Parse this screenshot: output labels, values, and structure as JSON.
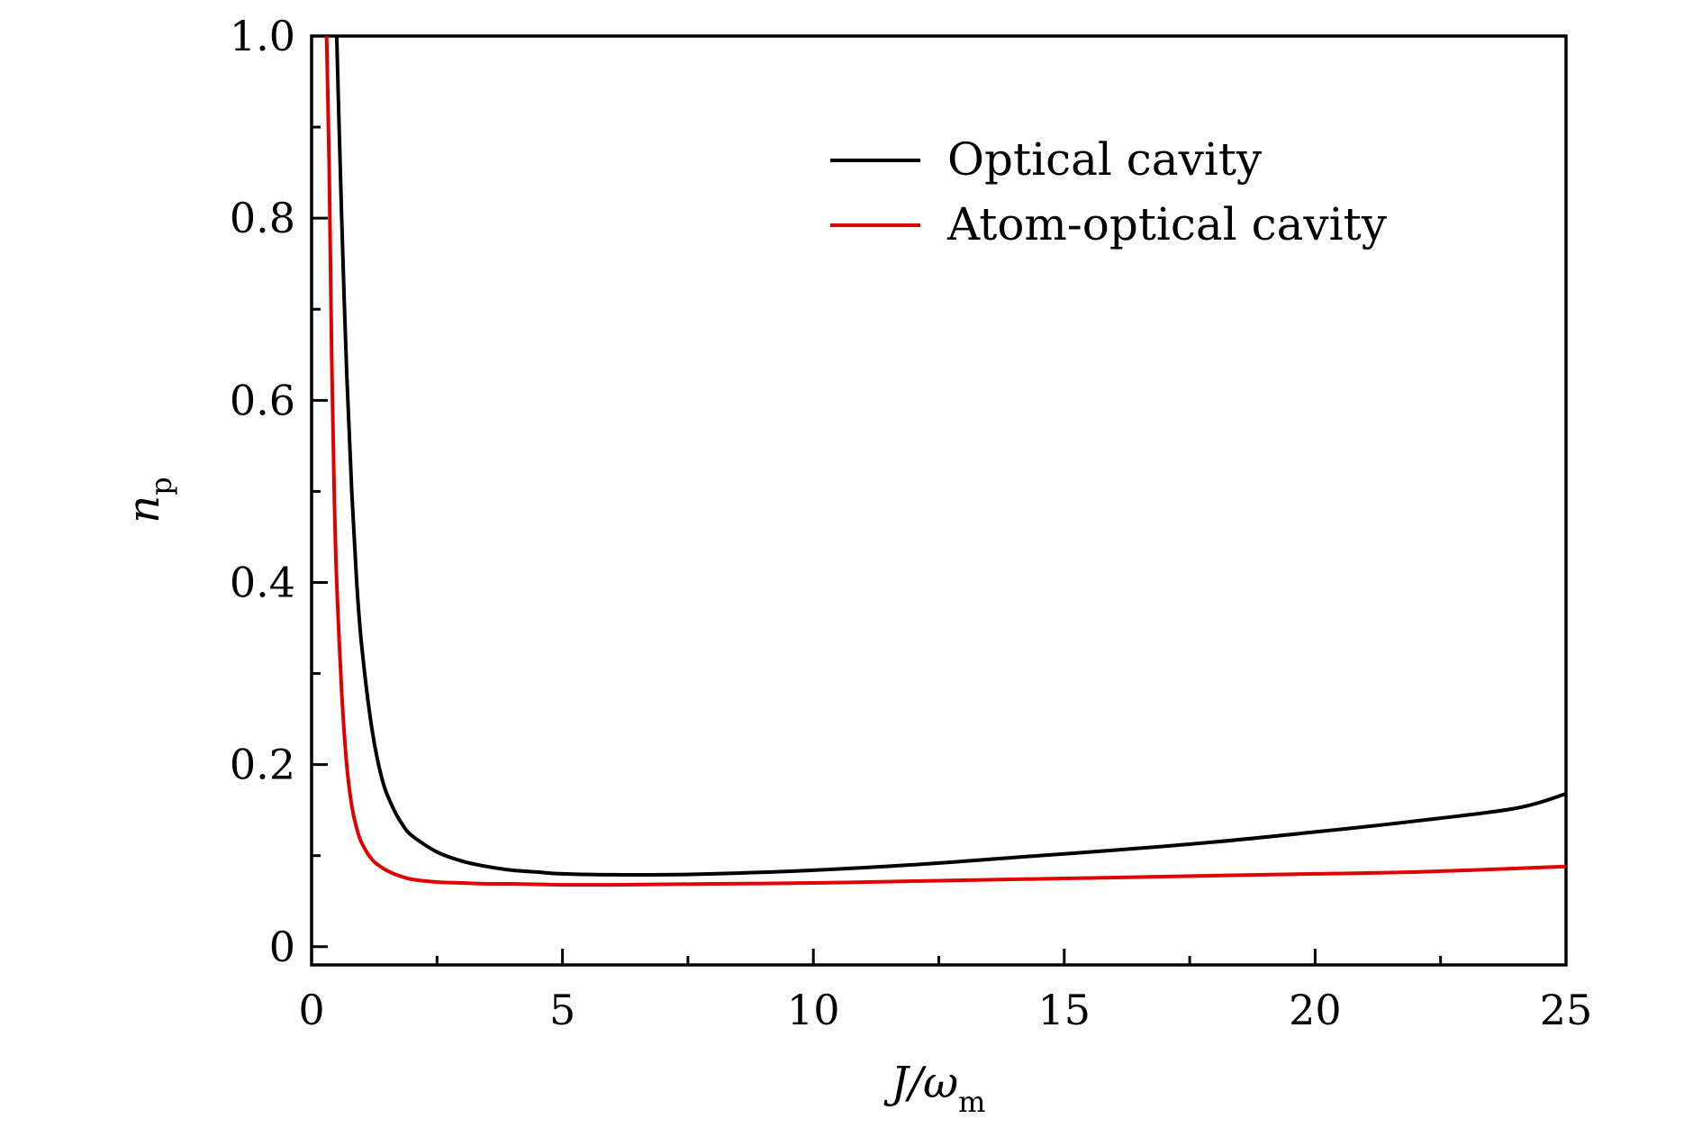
{
  "chart_data": {
    "type": "line",
    "xlabel": "J/ω",
    "xlabel_main": "J/ω",
    "xlabel_sub": "m",
    "ylabel_main": "n",
    "ylabel_sub": "p",
    "xlim": [
      0,
      25
    ],
    "ylim": [
      -0.02,
      1.0
    ],
    "xticks": [
      0,
      5,
      10,
      15,
      20,
      25
    ],
    "xtick_labels": [
      "0",
      "5",
      "10",
      "15",
      "20",
      "25"
    ],
    "yticks": [
      0,
      0.2,
      0.4,
      0.6,
      0.8,
      1.0
    ],
    "ytick_labels": [
      "0",
      "0.2",
      "0.4",
      "0.6",
      "0.8",
      "1.0"
    ],
    "legend_position": "top-right",
    "series": [
      {
        "name": "Optical cavity",
        "color": "#000000",
        "x": [
          0.5,
          0.55,
          0.6,
          0.7,
          0.8,
          0.9,
          1.0,
          1.2,
          1.4,
          1.6,
          1.8,
          2.0,
          2.5,
          3.0,
          3.5,
          4.0,
          4.5,
          5.0,
          6.0,
          7.0,
          8.0,
          10.0,
          12.0,
          14.0,
          16.0,
          18.0,
          20.0,
          22.0,
          24.0,
          25.0
        ],
        "values": [
          1.0,
          0.9,
          0.8,
          0.63,
          0.5,
          0.4,
          0.33,
          0.24,
          0.185,
          0.155,
          0.135,
          0.122,
          0.104,
          0.094,
          0.088,
          0.084,
          0.082,
          0.08,
          0.079,
          0.079,
          0.08,
          0.084,
          0.09,
          0.098,
          0.106,
          0.115,
          0.126,
          0.138,
          0.152,
          0.168
        ]
      },
      {
        "name": "Atom-optical cavity",
        "color": "#e00000",
        "x": [
          0.3,
          0.35,
          0.4,
          0.45,
          0.5,
          0.6,
          0.7,
          0.8,
          0.9,
          1.0,
          1.2,
          1.4,
          1.6,
          1.8,
          2.0,
          2.5,
          3.0,
          3.5,
          4.0,
          5.0,
          6.0,
          8.0,
          10.0,
          12.0,
          15.0,
          18.0,
          20.0,
          22.0,
          25.0
        ],
        "values": [
          1.0,
          0.86,
          0.65,
          0.5,
          0.4,
          0.28,
          0.2,
          0.155,
          0.13,
          0.114,
          0.096,
          0.087,
          0.081,
          0.077,
          0.074,
          0.071,
          0.07,
          0.069,
          0.069,
          0.068,
          0.068,
          0.069,
          0.07,
          0.072,
          0.075,
          0.078,
          0.08,
          0.082,
          0.088
        ]
      }
    ]
  }
}
